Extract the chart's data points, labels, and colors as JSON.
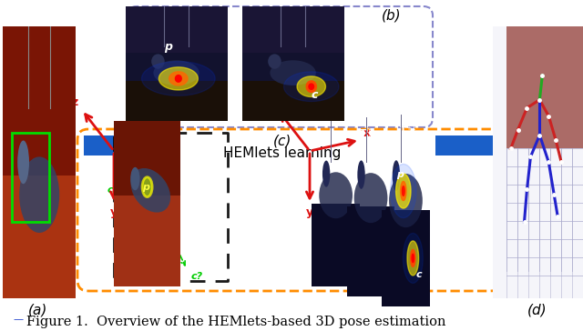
{
  "caption": "Figure 1.  Overview of the HEMlets-based 3D pose estimation",
  "caption_fontsize": 10.5,
  "fig_width": 6.4,
  "fig_height": 3.64,
  "background_color": "#ffffff",
  "label_a": "(a)",
  "label_b": "(b)",
  "label_c": "(c)",
  "label_d": "(d)",
  "arrow_label": "HEMlets learning",
  "blue_dash_border_color": "#8888cc",
  "orange_dash_border_color": "#FF8C00",
  "arrow_color": "#1a5fc8",
  "axis_color_red": "#dd1111",
  "caption_color": "#000000",
  "panel_a_bg": "#c0392b",
  "panel_a_floor": "#8B3010",
  "panel_b_bg": "#151535",
  "panel_c_bg": "#1a1a3a",
  "panel_d_bg": "#f0f0f8",
  "grid_color": "#aaaacc",
  "skeleton_red": "#cc2222",
  "skeleton_blue": "#2222cc",
  "skeleton_green": "#22aa22",
  "heatmap_yellow": "#ffcc00",
  "heatmap_red": "#ff3300",
  "heatmap_blue_inner": "#0044ff",
  "green_text": "#00bb00"
}
